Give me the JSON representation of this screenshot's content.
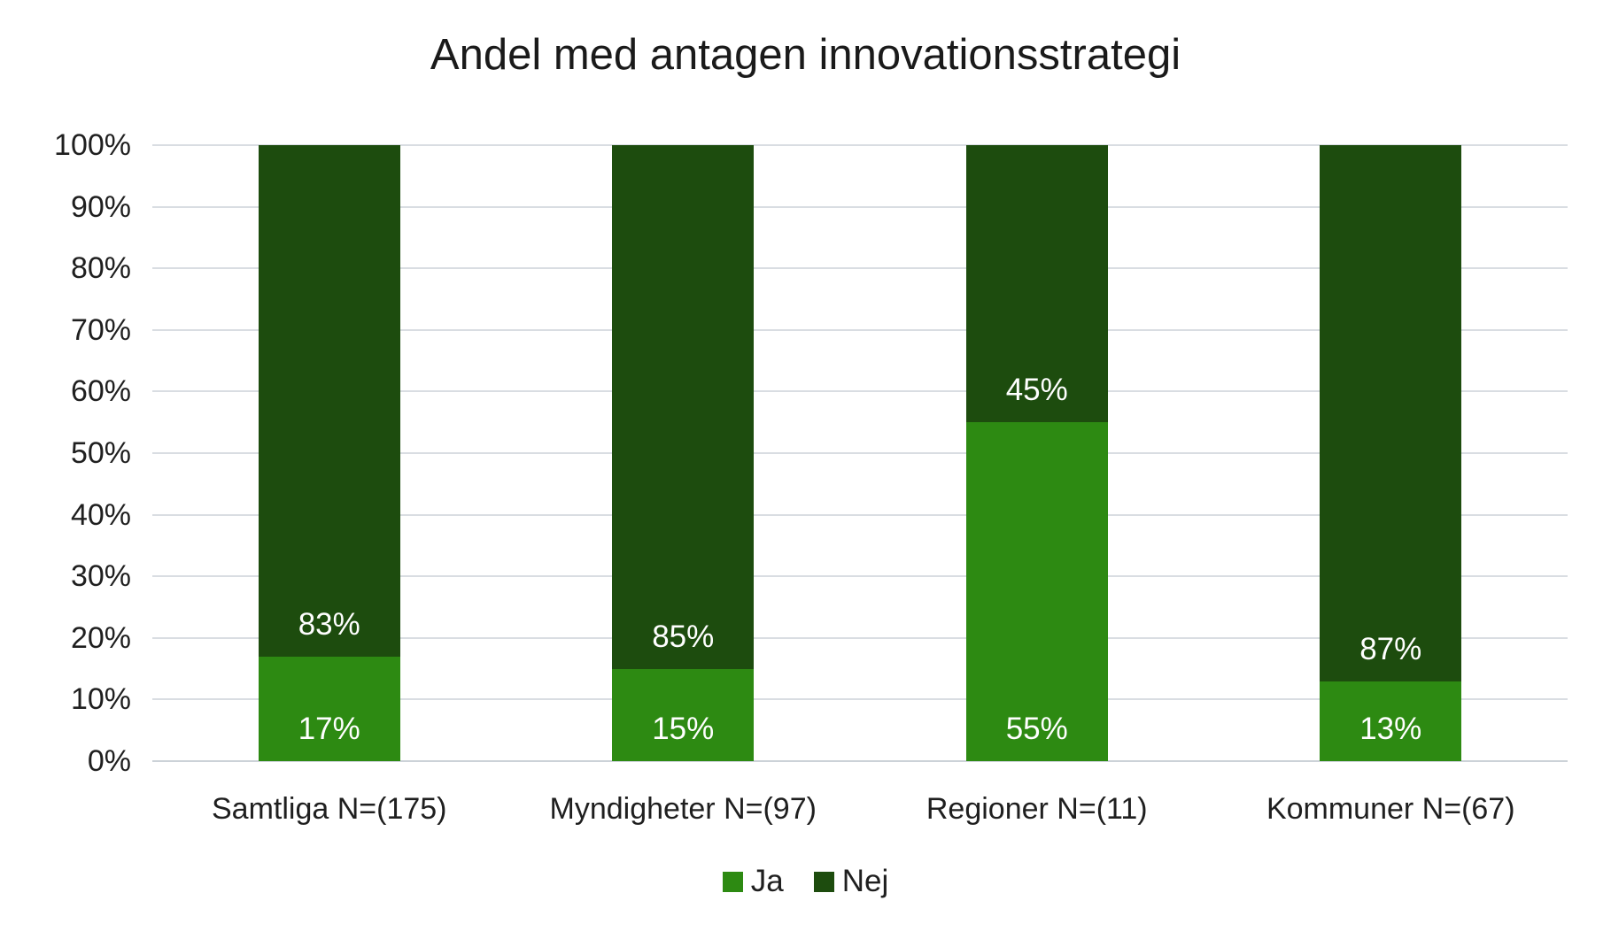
{
  "title": "Andel med antagen innovationsstrategi",
  "chart_data": {
    "type": "bar",
    "stacked": true,
    "orientation": "vertical",
    "title": "Andel med antagen innovationsstrategi",
    "categories": [
      "Samtliga N=(175)",
      "Myndigheter N=(97)",
      "Regioner N=(11)",
      "Kommuner N=(67)"
    ],
    "series": [
      {
        "name": "Ja",
        "color": "#2d8a12",
        "values": [
          17,
          15,
          55,
          13
        ],
        "labels": [
          "17%",
          "15%",
          "55%",
          "13%"
        ]
      },
      {
        "name": "Nej",
        "color": "#1d4c0e",
        "values": [
          83,
          85,
          45,
          87
        ],
        "labels": [
          "83%",
          "85%",
          "45%",
          "87%"
        ]
      }
    ],
    "xlabel": "",
    "ylabel": "",
    "ylim": [
      0,
      100
    ],
    "ytick_step": 10,
    "ytick_labels": [
      "0%",
      "10%",
      "20%",
      "30%",
      "40%",
      "50%",
      "60%",
      "70%",
      "80%",
      "90%",
      "100%"
    ],
    "grid": "horizontal",
    "gridline_color": "#d9dde2",
    "legend_position": "bottom",
    "legend_entries": [
      "Ja",
      "Nej"
    ],
    "data_label_color": "#ffffff",
    "data_label_anchor": "inside-base"
  }
}
